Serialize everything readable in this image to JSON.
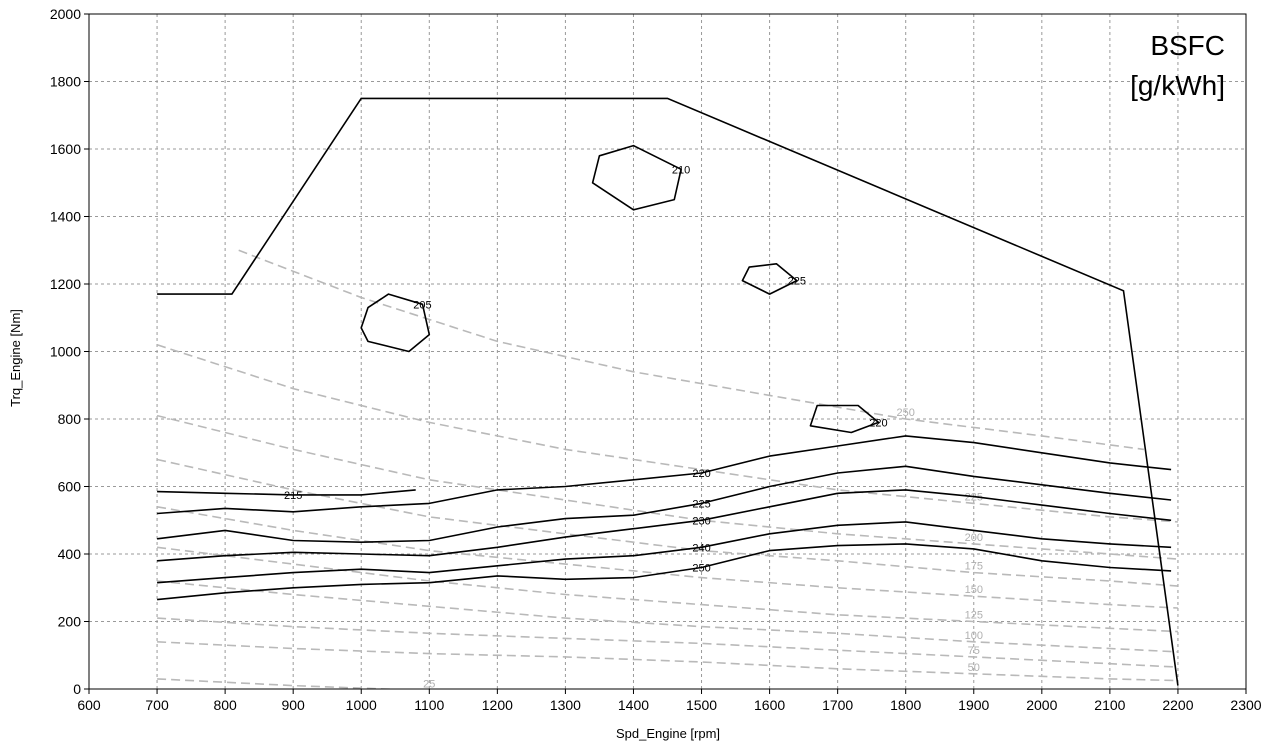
{
  "chart_data": {
    "type": "contour",
    "title": "BSFC",
    "subtitle": "[g/kWh]",
    "xlabel": "Spd_Engine [rpm]",
    "ylabel": "Trq_Engine [Nm]",
    "xlim": [
      600,
      2300
    ],
    "ylim": [
      0,
      2000
    ],
    "xticks": [
      "600",
      "700",
      "800",
      "900",
      "1000",
      "1100",
      "1200",
      "1300",
      "1400",
      "1500",
      "1600",
      "1700",
      "1800",
      "1900",
      "2000",
      "2100",
      "2200",
      "2300"
    ],
    "yticks": [
      "0",
      "200",
      "400",
      "600",
      "800",
      "1000",
      "1200",
      "1400",
      "1600",
      "1800",
      "2000"
    ],
    "grid": true,
    "colors": {
      "contour": "#000000",
      "power_lines": "#b9b9b9",
      "grid": "#9a9a9a"
    },
    "boundary": [
      [
        700,
        1170
      ],
      [
        810,
        1170
      ],
      [
        1000,
        1750
      ],
      [
        1450,
        1750
      ],
      [
        2120,
        1180
      ],
      [
        2200,
        10
      ]
    ],
    "bsfc_contours": [
      {
        "level": "250",
        "points": [
          [
            700,
            265
          ],
          [
            800,
            285
          ],
          [
            900,
            300
          ],
          [
            1000,
            310
          ],
          [
            1100,
            315
          ],
          [
            1200,
            335
          ],
          [
            1300,
            325
          ],
          [
            1400,
            330
          ],
          [
            1500,
            360
          ],
          [
            1600,
            410
          ],
          [
            1700,
            425
          ],
          [
            1800,
            430
          ],
          [
            1900,
            415
          ],
          [
            2000,
            380
          ],
          [
            2100,
            360
          ],
          [
            2190,
            350
          ]
        ]
      },
      {
        "level": "240",
        "points": [
          [
            700,
            315
          ],
          [
            800,
            330
          ],
          [
            900,
            345
          ],
          [
            1000,
            355
          ],
          [
            1100,
            345
          ],
          [
            1200,
            365
          ],
          [
            1300,
            385
          ],
          [
            1400,
            395
          ],
          [
            1500,
            420
          ],
          [
            1600,
            460
          ],
          [
            1700,
            485
          ],
          [
            1800,
            495
          ],
          [
            1900,
            470
          ],
          [
            2000,
            445
          ],
          [
            2100,
            430
          ],
          [
            2190,
            420
          ]
        ]
      },
      {
        "level": "230",
        "points": [
          [
            700,
            380
          ],
          [
            800,
            395
          ],
          [
            900,
            405
          ],
          [
            1000,
            400
          ],
          [
            1100,
            395
          ],
          [
            1200,
            420
          ],
          [
            1300,
            450
          ],
          [
            1400,
            475
          ],
          [
            1500,
            500
          ],
          [
            1600,
            540
          ],
          [
            1700,
            580
          ],
          [
            1800,
            590
          ],
          [
            1900,
            570
          ],
          [
            2000,
            545
          ],
          [
            2100,
            520
          ],
          [
            2190,
            500
          ]
        ]
      },
      {
        "level": "225",
        "points": [
          [
            700,
            445
          ],
          [
            800,
            470
          ],
          [
            900,
            440
          ],
          [
            1000,
            435
          ],
          [
            1100,
            440
          ],
          [
            1200,
            480
          ],
          [
            1300,
            505
          ],
          [
            1400,
            515
          ],
          [
            1500,
            550
          ],
          [
            1600,
            600
          ],
          [
            1700,
            640
          ],
          [
            1800,
            660
          ],
          [
            1900,
            630
          ],
          [
            2000,
            605
          ],
          [
            2100,
            580
          ],
          [
            2190,
            560
          ]
        ]
      },
      {
        "level": "220",
        "points": [
          [
            700,
            520
          ],
          [
            800,
            535
          ],
          [
            900,
            525
          ],
          [
            1000,
            540
          ],
          [
            1100,
            550
          ],
          [
            1200,
            590
          ],
          [
            1300,
            600
          ],
          [
            1400,
            620
          ],
          [
            1500,
            640
          ],
          [
            1600,
            690
          ],
          [
            1700,
            720
          ],
          [
            1800,
            750
          ],
          [
            1900,
            730
          ],
          [
            2000,
            700
          ],
          [
            2100,
            670
          ],
          [
            2190,
            650
          ]
        ]
      },
      {
        "level": "215",
        "points": [
          [
            700,
            585
          ],
          [
            800,
            580
          ],
          [
            900,
            575
          ],
          [
            1000,
            575
          ],
          [
            1080,
            590
          ]
        ]
      },
      {
        "level": "205",
        "points": [
          [
            1010,
            1030
          ],
          [
            1070,
            1000
          ],
          [
            1100,
            1050
          ],
          [
            1090,
            1140
          ],
          [
            1040,
            1170
          ],
          [
            1010,
            1130
          ],
          [
            1000,
            1070
          ]
        ]
      },
      {
        "level": "210",
        "points": [
          [
            1340,
            1500
          ],
          [
            1400,
            1420
          ],
          [
            1460,
            1450
          ],
          [
            1470,
            1540
          ],
          [
            1400,
            1610
          ],
          [
            1350,
            1580
          ]
        ]
      },
      {
        "level": "220",
        "points": [
          [
            1660,
            780
          ],
          [
            1720,
            760
          ],
          [
            1760,
            790
          ],
          [
            1730,
            840
          ],
          [
            1670,
            840
          ]
        ]
      },
      {
        "level": "225",
        "points": [
          [
            1560,
            1210
          ],
          [
            1600,
            1170
          ],
          [
            1640,
            1210
          ],
          [
            1610,
            1260
          ],
          [
            1570,
            1250
          ]
        ]
      }
    ],
    "power_contours": [
      {
        "level": "25",
        "points": [
          [
            700,
            30
          ],
          [
            900,
            10
          ],
          [
            1100,
            -5
          ]
        ]
      },
      {
        "level": "50",
        "points": [
          [
            700,
            140
          ],
          [
            900,
            120
          ],
          [
            1100,
            105
          ],
          [
            1300,
            95
          ],
          [
            1500,
            80
          ],
          [
            1700,
            60
          ],
          [
            1900,
            45
          ],
          [
            2100,
            30
          ],
          [
            2200,
            25
          ]
        ]
      },
      {
        "level": "75",
        "points": [
          [
            700,
            210
          ],
          [
            900,
            185
          ],
          [
            1100,
            165
          ],
          [
            1300,
            150
          ],
          [
            1500,
            135
          ],
          [
            1700,
            115
          ],
          [
            1900,
            95
          ],
          [
            2100,
            75
          ],
          [
            2200,
            65
          ]
        ]
      },
      {
        "level": "100",
        "points": [
          [
            700,
            320
          ],
          [
            900,
            280
          ],
          [
            1100,
            245
          ],
          [
            1300,
            210
          ],
          [
            1500,
            185
          ],
          [
            1700,
            165
          ],
          [
            1900,
            140
          ],
          [
            2100,
            120
          ],
          [
            2200,
            110
          ]
        ]
      },
      {
        "level": "125",
        "points": [
          [
            700,
            420
          ],
          [
            900,
            370
          ],
          [
            1100,
            320
          ],
          [
            1300,
            280
          ],
          [
            1500,
            250
          ],
          [
            1700,
            220
          ],
          [
            1900,
            200
          ],
          [
            2100,
            180
          ],
          [
            2200,
            170
          ]
        ]
      },
      {
        "level": "150",
        "points": [
          [
            700,
            540
          ],
          [
            900,
            470
          ],
          [
            1100,
            410
          ],
          [
            1300,
            370
          ],
          [
            1500,
            330
          ],
          [
            1700,
            300
          ],
          [
            1900,
            275
          ],
          [
            2100,
            250
          ],
          [
            2200,
            240
          ]
        ]
      },
      {
        "level": "175",
        "points": [
          [
            700,
            680
          ],
          [
            900,
            590
          ],
          [
            1100,
            510
          ],
          [
            1300,
            460
          ],
          [
            1500,
            410
          ],
          [
            1700,
            380
          ],
          [
            1900,
            345
          ],
          [
            2100,
            320
          ],
          [
            2200,
            305
          ]
        ]
      },
      {
        "level": "200",
        "points": [
          [
            700,
            810
          ],
          [
            900,
            710
          ],
          [
            1100,
            620
          ],
          [
            1300,
            560
          ],
          [
            1500,
            500
          ],
          [
            1700,
            460
          ],
          [
            1900,
            430
          ],
          [
            2100,
            400
          ],
          [
            2200,
            385
          ]
        ]
      },
      {
        "level": "225",
        "points": [
          [
            700,
            1020
          ],
          [
            900,
            890
          ],
          [
            1100,
            790
          ],
          [
            1300,
            710
          ],
          [
            1500,
            650
          ],
          [
            1700,
            590
          ],
          [
            1900,
            550
          ],
          [
            2100,
            510
          ],
          [
            2200,
            495
          ]
        ]
      },
      {
        "level": "250",
        "points": [
          [
            820,
            1300
          ],
          [
            1000,
            1160
          ],
          [
            1200,
            1030
          ],
          [
            1400,
            940
          ],
          [
            1600,
            870
          ],
          [
            1800,
            800
          ],
          [
            2000,
            750
          ],
          [
            2150,
            710
          ]
        ]
      }
    ],
    "contour_label_notes": [
      "200",
      "205",
      "210",
      "215",
      "220",
      "225",
      "230",
      "240",
      "250"
    ],
    "power_label_notes": [
      "25",
      "50",
      "75",
      "100",
      "125",
      "150",
      "175",
      "200",
      "225",
      "250"
    ]
  }
}
